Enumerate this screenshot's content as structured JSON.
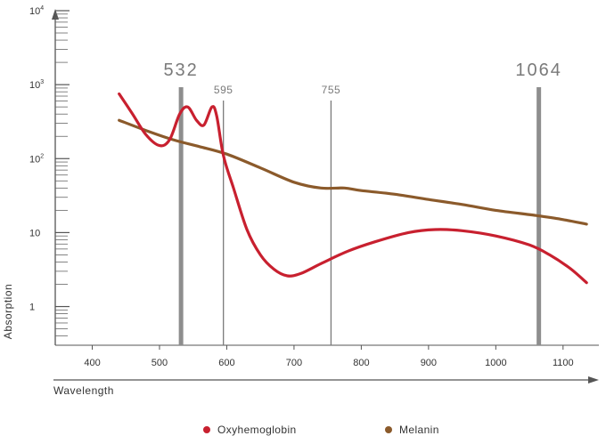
{
  "chart_data": {
    "type": "line",
    "title": "",
    "xlabel": "Wavelength",
    "ylabel": "Absorption",
    "x_scale": "linear",
    "y_scale": "log",
    "xlim": [
      345,
      1140
    ],
    "ylim": [
      0.3,
      10000
    ],
    "x_ticks": [
      400,
      500,
      600,
      700,
      800,
      900,
      1000,
      1100
    ],
    "x_tick_labels": [
      "400",
      "500",
      "600",
      "700",
      "800",
      "900",
      "1000",
      "1100"
    ],
    "y_ticks": [
      1,
      10,
      100,
      1000,
      10000
    ],
    "y_tick_labels": [
      {
        "base": "1",
        "exp": ""
      },
      {
        "base": "10",
        "exp": ""
      },
      {
        "base": "10",
        "exp": "2"
      },
      {
        "base": "10",
        "exp": "3"
      },
      {
        "base": "10",
        "exp": "4"
      }
    ],
    "markers": [
      {
        "value": 532,
        "label": "532",
        "style": "thick"
      },
      {
        "value": 595,
        "label": "595",
        "style": "thin"
      },
      {
        "value": 755,
        "label": "755",
        "style": "thin"
      },
      {
        "value": 1064,
        "label": "1064",
        "style": "thick"
      }
    ],
    "series": [
      {
        "name": "Oxyhemoglobin",
        "color": "#c8202f",
        "points": [
          [
            440,
            750
          ],
          [
            460,
            400
          ],
          [
            480,
            210
          ],
          [
            500,
            150
          ],
          [
            515,
            180
          ],
          [
            530,
            400
          ],
          [
            542,
            500
          ],
          [
            555,
            330
          ],
          [
            566,
            285
          ],
          [
            578,
            500
          ],
          [
            585,
            380
          ],
          [
            595,
            110
          ],
          [
            610,
            40
          ],
          [
            630,
            11
          ],
          [
            650,
            5
          ],
          [
            670,
            3.2
          ],
          [
            690,
            2.6
          ],
          [
            710,
            2.8
          ],
          [
            740,
            3.8
          ],
          [
            780,
            5.6
          ],
          [
            820,
            7.5
          ],
          [
            870,
            10
          ],
          [
            910,
            11
          ],
          [
            950,
            10.6
          ],
          [
            1000,
            9
          ],
          [
            1050,
            6.8
          ],
          [
            1080,
            5
          ],
          [
            1110,
            3.3
          ],
          [
            1135,
            2.1
          ]
        ]
      },
      {
        "name": "Melanin",
        "color": "#8b5a2b",
        "points": [
          [
            440,
            330
          ],
          [
            480,
            240
          ],
          [
            520,
            180
          ],
          [
            560,
            145
          ],
          [
            600,
            115
          ],
          [
            650,
            75
          ],
          [
            700,
            48
          ],
          [
            740,
            40
          ],
          [
            775,
            40
          ],
          [
            800,
            37
          ],
          [
            850,
            33
          ],
          [
            900,
            28
          ],
          [
            950,
            24
          ],
          [
            1000,
            20
          ],
          [
            1060,
            17
          ],
          [
            1100,
            15
          ],
          [
            1135,
            13
          ]
        ]
      }
    ]
  }
}
